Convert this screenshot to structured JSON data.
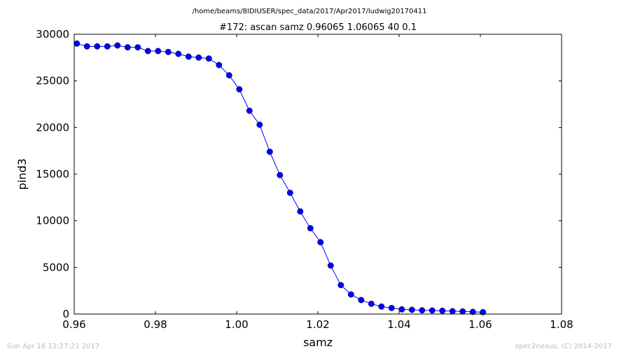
{
  "header": {
    "file_path": "/home/beams/8IDIUSER/spec_data/2017/Apr2017/ludwig20170411"
  },
  "footer": {
    "timestamp": "Sun Apr 16 12:27:21 2017",
    "credit": "spec2nexus, (C) 2014-2017"
  },
  "chart_data": {
    "type": "line",
    "title": "#172: ascan  samz 0.96065 1.06065  40 0.1",
    "xlabel": "samz",
    "ylabel": "pind3",
    "xlim": [
      0.96,
      1.08
    ],
    "ylim": [
      0,
      30000
    ],
    "xticks": [
      0.96,
      0.98,
      1.0,
      1.02,
      1.04,
      1.06,
      1.08
    ],
    "xtick_labels": [
      "0.96",
      "0.98",
      "1.00",
      "1.02",
      "1.04",
      "1.06",
      "1.08"
    ],
    "yticks": [
      0,
      5000,
      10000,
      15000,
      20000,
      25000,
      30000
    ],
    "ytick_labels": [
      "0",
      "5000",
      "10000",
      "15000",
      "20000",
      "25000",
      "30000"
    ],
    "grid": false,
    "series_color": "#0000ff",
    "marker": "circle",
    "x": [
      0.96065,
      0.96315,
      0.96565,
      0.96815,
      0.97065,
      0.97315,
      0.97565,
      0.97815,
      0.98065,
      0.98315,
      0.98565,
      0.98815,
      0.99065,
      0.99315,
      0.99565,
      0.99815,
      1.00065,
      1.00315,
      1.00565,
      1.00815,
      1.01065,
      1.01315,
      1.01565,
      1.01815,
      1.02065,
      1.02315,
      1.02565,
      1.02815,
      1.03065,
      1.03315,
      1.03565,
      1.03815,
      1.04065,
      1.04315,
      1.04565,
      1.04815,
      1.05065,
      1.05315,
      1.05565,
      1.05815,
      1.06065
    ],
    "y": [
      29000,
      28700,
      28700,
      28700,
      28800,
      28600,
      28600,
      28200,
      28200,
      28100,
      27900,
      27600,
      27500,
      27400,
      26700,
      25600,
      24100,
      21800,
      20300,
      17400,
      14900,
      13000,
      11000,
      9200,
      7700,
      5200,
      3100,
      2100,
      1500,
      1100,
      800,
      650,
      500,
      450,
      400,
      380,
      350,
      300,
      280,
      230,
      200
    ]
  }
}
